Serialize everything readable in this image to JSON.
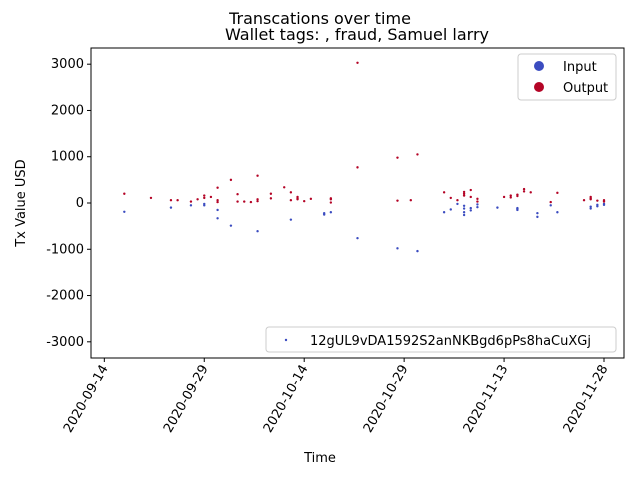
{
  "chart_data": {
    "type": "scatter",
    "suptitle": "Transcations over time",
    "title": "Wallet tags: , fraud, Samuel larry",
    "xlabel": "Time",
    "ylabel": "Tx Value USD",
    "xlim": [
      "2020-09-12",
      "2020-12-01"
    ],
    "ylim": [
      -3350,
      3350
    ],
    "yticks": [
      -3000,
      -2000,
      -1000,
      0,
      1000,
      2000,
      3000
    ],
    "xticks": [
      "2020-09-14",
      "2020-09-29",
      "2020-10-14",
      "2020-10-29",
      "2020-11-13",
      "2020-11-28"
    ],
    "grid": false,
    "colors": {
      "input": "#3b4cc0",
      "output": "#b40426"
    },
    "legend_upper": {
      "position": "upper right",
      "entries": [
        {
          "label": "Input",
          "color": "#3b4cc0"
        },
        {
          "label": "Output",
          "color": "#b40426"
        }
      ]
    },
    "legend_lower": {
      "position": "lower right",
      "entries": [
        {
          "label": "12gUL9vDA1592S2anNKBgd6pPs8haCuXGj",
          "color": "#3b4cc0"
        }
      ]
    },
    "series": [
      {
        "name": "Input",
        "points": [
          [
            "2020-09-17",
            -190
          ],
          [
            "2020-09-24",
            -100
          ],
          [
            "2020-09-27",
            -50
          ],
          [
            "2020-09-29",
            -20
          ],
          [
            "2020-09-29",
            -50
          ],
          [
            "2020-10-01",
            -150
          ],
          [
            "2020-10-01",
            -330
          ],
          [
            "2020-10-03",
            -490
          ],
          [
            "2020-10-07",
            -610
          ],
          [
            "2020-10-12",
            -360
          ],
          [
            "2020-10-17",
            -250
          ],
          [
            "2020-10-17",
            -220
          ],
          [
            "2020-10-18",
            -200
          ],
          [
            "2020-10-22",
            -760
          ],
          [
            "2020-10-28",
            -980
          ],
          [
            "2020-10-31",
            -1040
          ],
          [
            "2020-11-04",
            -200
          ],
          [
            "2020-11-05",
            -140
          ],
          [
            "2020-11-06",
            -20
          ],
          [
            "2020-11-07",
            -60
          ],
          [
            "2020-11-07",
            -120
          ],
          [
            "2020-11-07",
            -200
          ],
          [
            "2020-11-07",
            -260
          ],
          [
            "2020-11-08",
            -110
          ],
          [
            "2020-11-08",
            -160
          ],
          [
            "2020-11-09",
            -30
          ],
          [
            "2020-11-09",
            -90
          ],
          [
            "2020-11-12",
            -100
          ],
          [
            "2020-11-15",
            -130
          ],
          [
            "2020-11-15",
            -150
          ],
          [
            "2020-11-15",
            -110
          ],
          [
            "2020-11-18",
            -220
          ],
          [
            "2020-11-18",
            -300
          ],
          [
            "2020-11-20",
            -50
          ],
          [
            "2020-11-21",
            -200
          ],
          [
            "2020-11-26",
            -80
          ],
          [
            "2020-11-26",
            -120
          ],
          [
            "2020-11-27",
            -40
          ],
          [
            "2020-11-27",
            -70
          ],
          [
            "2020-11-28",
            -20
          ],
          [
            "2020-11-28",
            -40
          ]
        ]
      },
      {
        "name": "Output",
        "points": [
          [
            "2020-09-17",
            200
          ],
          [
            "2020-09-21",
            110
          ],
          [
            "2020-09-24",
            60
          ],
          [
            "2020-09-25",
            60
          ],
          [
            "2020-09-27",
            30
          ],
          [
            "2020-09-28",
            80
          ],
          [
            "2020-09-29",
            110
          ],
          [
            "2020-09-29",
            160
          ],
          [
            "2020-09-30",
            130
          ],
          [
            "2020-10-01",
            330
          ],
          [
            "2020-10-01",
            60
          ],
          [
            "2020-10-01",
            20
          ],
          [
            "2020-10-03",
            500
          ],
          [
            "2020-10-04",
            30
          ],
          [
            "2020-10-04",
            190
          ],
          [
            "2020-10-05",
            30
          ],
          [
            "2020-10-06",
            20
          ],
          [
            "2020-10-07",
            40
          ],
          [
            "2020-10-07",
            80
          ],
          [
            "2020-10-07",
            590
          ],
          [
            "2020-10-09",
            100
          ],
          [
            "2020-10-09",
            200
          ],
          [
            "2020-10-11",
            340
          ],
          [
            "2020-10-12",
            230
          ],
          [
            "2020-10-12",
            60
          ],
          [
            "2020-10-13",
            80
          ],
          [
            "2020-10-13",
            130
          ],
          [
            "2020-10-13",
            100
          ],
          [
            "2020-10-14",
            40
          ],
          [
            "2020-10-15",
            90
          ],
          [
            "2020-10-18",
            10
          ],
          [
            "2020-10-18",
            100
          ],
          [
            "2020-10-18",
            80
          ],
          [
            "2020-10-22",
            3030
          ],
          [
            "2020-10-22",
            770
          ],
          [
            "2020-10-28",
            980
          ],
          [
            "2020-10-28",
            50
          ],
          [
            "2020-10-30",
            60
          ],
          [
            "2020-10-31",
            1050
          ],
          [
            "2020-11-04",
            230
          ],
          [
            "2020-11-05",
            110
          ],
          [
            "2020-11-06",
            60
          ],
          [
            "2020-11-07",
            240
          ],
          [
            "2020-11-07",
            160
          ],
          [
            "2020-11-07",
            200
          ],
          [
            "2020-11-08",
            280
          ],
          [
            "2020-11-08",
            130
          ],
          [
            "2020-11-09",
            90
          ],
          [
            "2020-11-09",
            30
          ],
          [
            "2020-11-13",
            130
          ],
          [
            "2020-11-14",
            120
          ],
          [
            "2020-11-14",
            160
          ],
          [
            "2020-11-15",
            180
          ],
          [
            "2020-11-15",
            150
          ],
          [
            "2020-11-16",
            300
          ],
          [
            "2020-11-16",
            250
          ],
          [
            "2020-11-17",
            230
          ],
          [
            "2020-11-20",
            20
          ],
          [
            "2020-11-21",
            220
          ],
          [
            "2020-11-25",
            60
          ],
          [
            "2020-11-26",
            80
          ],
          [
            "2020-11-26",
            100
          ],
          [
            "2020-11-26",
            130
          ],
          [
            "2020-11-27",
            50
          ],
          [
            "2020-11-28",
            60
          ],
          [
            "2020-11-28",
            30
          ]
        ]
      }
    ]
  }
}
